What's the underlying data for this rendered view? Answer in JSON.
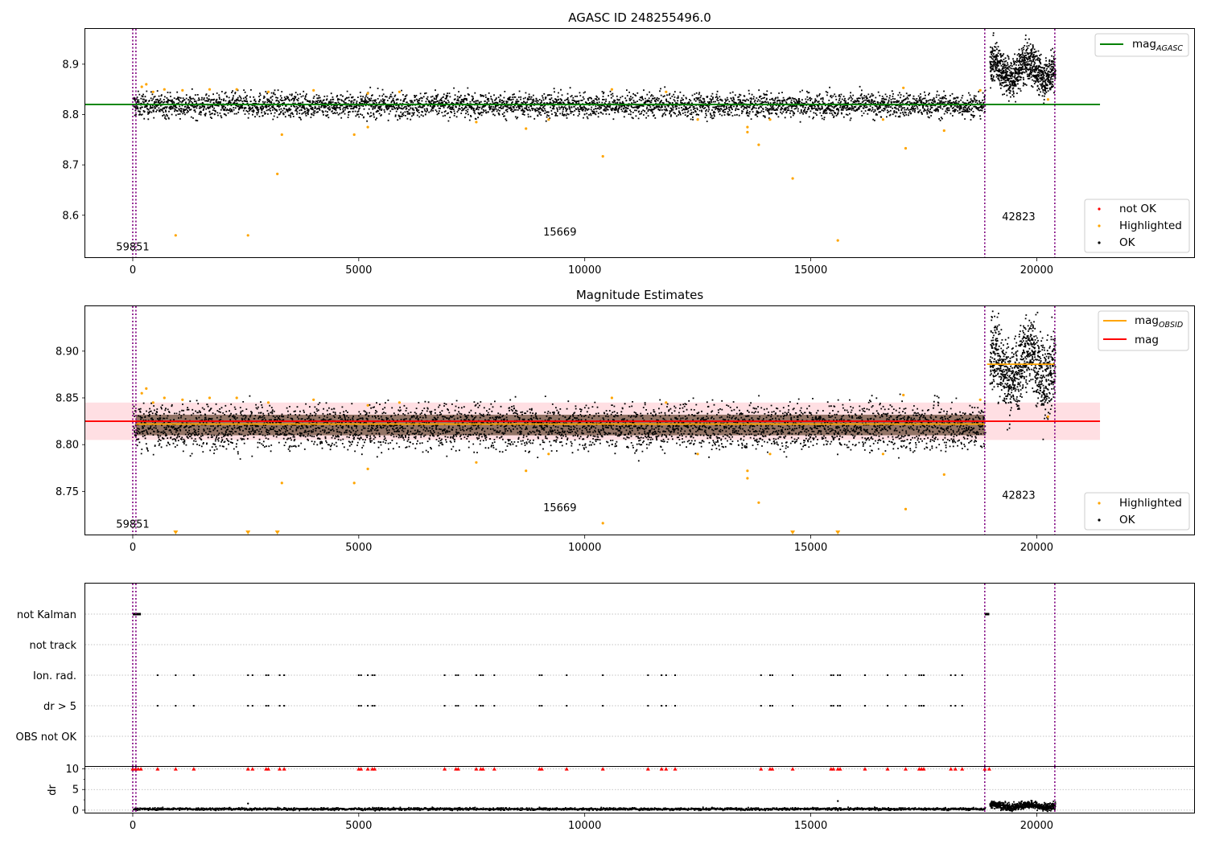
{
  "colors": {
    "ok": "#000000",
    "highlighted": "#ffa500",
    "not_ok": "#ff0000",
    "mag_agasc_line": "#008000",
    "mag_obsid_line": "#ffa500",
    "mag_line": "#ff0000",
    "mag_band": "#ffc0c8",
    "obs_boundary": "#800080",
    "grid": "#b0b0b0"
  },
  "chart_data": [
    {
      "type": "scatter",
      "id": "agasc",
      "title": "AGASC ID 248255496.0",
      "xlim": [
        -1050,
        23500
      ],
      "ylim": [
        8.515,
        8.97
      ],
      "xticks": [
        0,
        5000,
        10000,
        15000,
        20000
      ],
      "xtick_labels": [
        "0",
        "5000",
        "10000",
        "15000",
        "20000"
      ],
      "yticks": [
        8.6,
        8.7,
        8.8,
        8.9
      ],
      "ytick_labels": [
        "8.6",
        "8.7",
        "8.8",
        "8.9"
      ],
      "obs_boundaries": [
        0,
        70,
        18850,
        20400
      ],
      "obs_labels": [
        {
          "text": "59851",
          "x": 0,
          "y": 8.53
        },
        {
          "text": "15669",
          "x": 9450,
          "y": 8.56
        },
        {
          "text": "42823",
          "x": 19600,
          "y": 8.59
        }
      ],
      "lines": [
        {
          "name": "mag_AGASC",
          "y": 8.82,
          "x0": -1050,
          "x1": 21400,
          "color": "#008000"
        }
      ],
      "ok_segments": [
        {
          "x0": 0,
          "x1": 18850,
          "center": 8.82,
          "spread": 0.012
        },
        {
          "x0": 18950,
          "x1": 20400,
          "center": 8.89,
          "spread": 0.02
        }
      ],
      "highlighted_points": [
        [
          950,
          8.56
        ],
        [
          2550,
          8.56
        ],
        [
          3200,
          8.682
        ],
        [
          3300,
          8.76
        ],
        [
          4900,
          8.76
        ],
        [
          5200,
          8.775
        ],
        [
          8700,
          8.772
        ],
        [
          10400,
          8.717
        ],
        [
          13600,
          8.775
        ],
        [
          13600,
          8.765
        ],
        [
          13850,
          8.74
        ],
        [
          14600,
          8.673
        ],
        [
          15600,
          8.55
        ],
        [
          17100,
          8.733
        ],
        [
          17950,
          8.768
        ],
        [
          200,
          8.855
        ],
        [
          300,
          8.86
        ],
        [
          450,
          8.845
        ],
        [
          700,
          8.85
        ],
        [
          1100,
          8.848
        ],
        [
          1700,
          8.85
        ],
        [
          2300,
          8.85
        ],
        [
          3000,
          8.845
        ],
        [
          4000,
          8.848
        ],
        [
          5200,
          8.842
        ],
        [
          5900,
          8.845
        ],
        [
          7600,
          8.785
        ],
        [
          9200,
          8.79
        ],
        [
          10600,
          8.85
        ],
        [
          11800,
          8.845
        ],
        [
          16600,
          8.79
        ],
        [
          17050,
          8.853
        ],
        [
          18750,
          8.848
        ],
        [
          20250,
          8.83
        ],
        [
          12500,
          8.79
        ],
        [
          14100,
          8.79
        ]
      ],
      "legend": [
        {
          "label": "mag",
          "sub": "AGASC",
          "kind": "line",
          "color": "#008000"
        }
      ],
      "legend2": [
        {
          "label": "not OK",
          "kind": "point",
          "color": "#ff0000"
        },
        {
          "label": "Highlighted",
          "kind": "point",
          "color": "#ffa500"
        },
        {
          "label": "OK",
          "kind": "point",
          "color": "#000000"
        }
      ]
    },
    {
      "type": "scatter",
      "id": "estimates",
      "title": "Magnitude Estimates",
      "xlim": [
        -1050,
        23500
      ],
      "ylim": [
        8.703,
        8.948
      ],
      "xticks": [
        0,
        5000,
        10000,
        15000,
        20000
      ],
      "xtick_labels": [
        "0",
        "5000",
        "10000",
        "15000",
        "20000"
      ],
      "yticks": [
        8.75,
        8.8,
        8.85,
        8.9
      ],
      "ytick_labels": [
        "8.75",
        "8.80",
        "8.85",
        "8.90"
      ],
      "obs_boundaries": [
        0,
        70,
        18850,
        20400
      ],
      "obs_labels": [
        {
          "text": "59851",
          "x": 0,
          "y": 8.711
        },
        {
          "text": "15669",
          "x": 9450,
          "y": 8.729
        },
        {
          "text": "42823",
          "x": 19600,
          "y": 8.742
        }
      ],
      "band": {
        "y0": 8.805,
        "y1": 8.845,
        "x0": -1050,
        "x1": 21400
      },
      "lines": [
        {
          "name": "mag",
          "y": 8.825,
          "x0": -1050,
          "x1": 21400,
          "color": "#ff0000"
        },
        {
          "name": "mag_OBSID",
          "y": 8.822,
          "x0": 70,
          "x1": 18850,
          "color": "#ffa500"
        },
        {
          "name": "mag_OBSID",
          "y": 8.886,
          "x0": 18900,
          "x1": 20400,
          "color": "#ffa500"
        }
      ],
      "ok_segments": [
        {
          "x0": 0,
          "x1": 18850,
          "center": 8.82,
          "spread": 0.012
        },
        {
          "x0": 18950,
          "x1": 20400,
          "center": 8.885,
          "spread": 0.02
        }
      ],
      "highlighted_points": [
        [
          3300,
          8.759
        ],
        [
          4900,
          8.759
        ],
        [
          5200,
          8.774
        ],
        [
          8700,
          8.772
        ],
        [
          10400,
          8.716
        ],
        [
          13600,
          8.772
        ],
        [
          13600,
          8.764
        ],
        [
          13850,
          8.738
        ],
        [
          17100,
          8.731
        ],
        [
          17950,
          8.768
        ],
        [
          200,
          8.855
        ],
        [
          300,
          8.86
        ],
        [
          450,
          8.845
        ],
        [
          700,
          8.85
        ],
        [
          1100,
          8.848
        ],
        [
          1700,
          8.85
        ],
        [
          2300,
          8.85
        ],
        [
          3000,
          8.845
        ],
        [
          4000,
          8.848
        ],
        [
          5200,
          8.842
        ],
        [
          5900,
          8.845
        ],
        [
          7600,
          8.781
        ],
        [
          9200,
          8.79
        ],
        [
          10600,
          8.85
        ],
        [
          11800,
          8.845
        ],
        [
          16600,
          8.79
        ],
        [
          17050,
          8.853
        ],
        [
          18750,
          8.848
        ],
        [
          20250,
          8.83
        ],
        [
          12500,
          8.79
        ],
        [
          14100,
          8.79
        ]
      ],
      "clipped_markers": [
        950,
        2550,
        3200,
        14600,
        15600
      ],
      "legend": [
        {
          "label": "mag",
          "sub": "OBSID",
          "kind": "line",
          "color": "#ffa500"
        },
        {
          "label": "mag",
          "sub": "",
          "kind": "line",
          "color": "#ff0000"
        }
      ],
      "legend2": [
        {
          "label": "Highlighted",
          "kind": "point",
          "color": "#ffa500"
        },
        {
          "label": "OK",
          "kind": "point",
          "color": "#000000"
        }
      ]
    },
    {
      "type": "scatter",
      "id": "flags",
      "title": "",
      "xlim": [
        -1050,
        23500
      ],
      "categories": [
        "not Kalman",
        "not track",
        "Ion. rad.",
        "dr > 5",
        "OBS not OK"
      ],
      "obs_boundaries": [
        0,
        70,
        18850,
        20400
      ],
      "flag_points": {
        "not Kalman": [
          [
            0,
            180
          ],
          [
            18850,
            18950
          ]
        ],
        "not track": [],
        "Ion. rad.": [
          550,
          950,
          1350,
          2550,
          2650,
          2950,
          3000,
          3250,
          3350,
          5000,
          5050,
          5200,
          5300,
          5350,
          6900,
          7150,
          7200,
          7600,
          7700,
          7750,
          8000,
          9000,
          9050,
          9600,
          10400,
          11400,
          11700,
          11800,
          12000,
          13900,
          14100,
          14150,
          14600,
          15450,
          15500,
          15600,
          15650,
          16200,
          16700,
          17100,
          17400,
          17450,
          17500,
          18100,
          18200,
          18350
        ],
        "dr > 5": [
          550,
          950,
          1350,
          2550,
          2650,
          2950,
          3000,
          3250,
          3350,
          5000,
          5050,
          5200,
          5300,
          5350,
          6900,
          7150,
          7200,
          7600,
          7700,
          7750,
          8000,
          9000,
          9050,
          9600,
          10400,
          11400,
          11700,
          11800,
          12000,
          13900,
          14100,
          14150,
          14600,
          15450,
          15500,
          15600,
          15650,
          16200,
          16700,
          17100,
          17400,
          17450,
          17500,
          18100,
          18200,
          18350
        ],
        "OBS not OK": []
      }
    },
    {
      "type": "scatter",
      "id": "dr",
      "title": "",
      "ylabel": "dr",
      "xlim": [
        -1050,
        23500
      ],
      "ylim": [
        -0.8,
        10.5
      ],
      "xticks": [
        0,
        5000,
        10000,
        15000,
        20000
      ],
      "xtick_labels": [
        "0",
        "5000",
        "10000",
        "15000",
        "20000"
      ],
      "yticks": [
        0,
        5,
        10
      ],
      "ytick_labels": [
        "0",
        "5",
        "10"
      ],
      "obs_boundaries": [
        0,
        70,
        18850,
        20400
      ],
      "ok_segments": [
        {
          "x0": 0,
          "x1": 18850,
          "center": 0.45,
          "spread": 0.15
        },
        {
          "x0": 18950,
          "x1": 20400,
          "center": 1.2,
          "spread": 0.45
        }
      ],
      "clipped_red_markers": [
        0,
        60,
        120,
        180,
        550,
        950,
        1350,
        2550,
        2650,
        2950,
        3000,
        3250,
        3350,
        5000,
        5050,
        5200,
        5300,
        5350,
        6900,
        7150,
        7200,
        7600,
        7700,
        7750,
        8000,
        9000,
        9050,
        9600,
        10400,
        11400,
        11700,
        11800,
        12000,
        13900,
        14100,
        14150,
        14600,
        15450,
        15500,
        15600,
        15650,
        16200,
        16700,
        17100,
        17400,
        17450,
        17500,
        18100,
        18200,
        18350,
        18850,
        18950
      ],
      "outliers": [
        [
          2550,
          1.6
        ],
        [
          15600,
          2.2
        ]
      ]
    }
  ]
}
